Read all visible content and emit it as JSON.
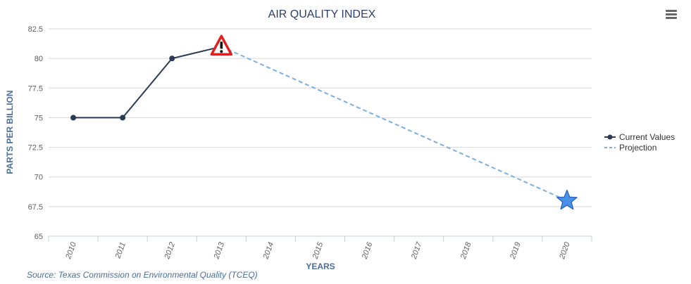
{
  "chart_data": {
    "type": "line",
    "title": "AIR QUALITY INDEX",
    "xlabel": "YEARS",
    "ylabel": "PARTS PER BILLION",
    "categories": [
      "2010",
      "2011",
      "2012",
      "2013",
      "2014",
      "2015",
      "2016",
      "2017",
      "2018",
      "2019",
      "2020"
    ],
    "ylim": [
      65,
      82.5
    ],
    "yticks": [
      "65",
      "67.5",
      "70",
      "72.5",
      "75",
      "77.5",
      "80",
      "82.5"
    ],
    "grid": true,
    "legend_position": "right",
    "series": [
      {
        "name": "Current Values",
        "style": "solid",
        "color": "#2b3b54",
        "points": [
          {
            "x": "2010",
            "y": 75
          },
          {
            "x": "2011",
            "y": 75
          },
          {
            "x": "2012",
            "y": 80
          },
          {
            "x": "2013",
            "y": 81
          }
        ]
      },
      {
        "name": "Projection",
        "style": "dashed",
        "color": "#7ab0e0",
        "points": [
          {
            "x": "2013",
            "y": 81
          },
          {
            "x": "2020",
            "y": 68
          }
        ]
      }
    ],
    "markers": [
      {
        "icon": "warning-icon",
        "x": "2013",
        "y": 81
      },
      {
        "icon": "star-icon",
        "x": "2020",
        "y": 68
      }
    ]
  },
  "source": "Source: Texas Commission on Environmental Quality (TCEQ)",
  "menu": {
    "icon": "hamburger-menu-icon"
  }
}
